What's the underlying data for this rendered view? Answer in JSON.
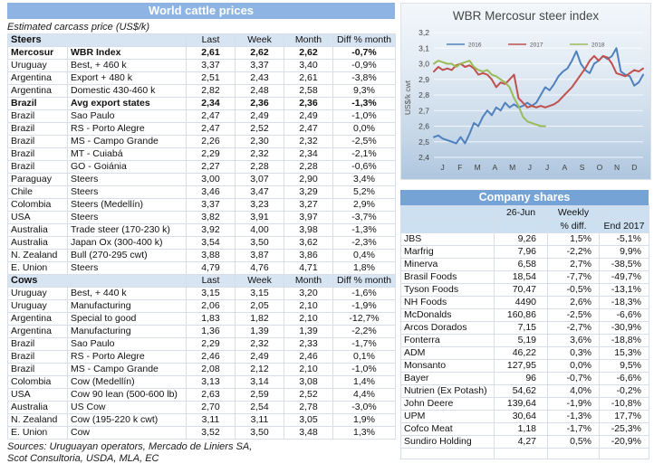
{
  "left_table": {
    "title": "World cattle prices",
    "subtitle": "Estimated carcass price (US$/k)",
    "columns": [
      "Last",
      "Week",
      "Month",
      "Diff % month"
    ],
    "sections": [
      {
        "label": "Steers",
        "rows": [
          {
            "country": "Mercosur",
            "desc": "WBR Index",
            "last": "2,61",
            "week": "2,62",
            "month": "2,62",
            "diff": "-0,7%",
            "bold": true
          },
          {
            "country": "Uruguay",
            "desc": "Best, + 460 k",
            "last": "3,37",
            "week": "3,37",
            "month": "3,40",
            "diff": "-0,9%"
          },
          {
            "country": "Argentina",
            "desc": "Export + 480 k",
            "last": "2,51",
            "week": "2,43",
            "month": "2,61",
            "diff": "-3,8%"
          },
          {
            "country": "Argentina",
            "desc": "Domestic 430-460 k",
            "last": "2,82",
            "week": "2,48",
            "month": "2,58",
            "diff": "9,3%"
          },
          {
            "country": "Brazil",
            "desc": "Avg export states",
            "last": "2,34",
            "week": "2,36",
            "month": "2,36",
            "diff": "-1,3%",
            "bold": true
          },
          {
            "country": "Brazil",
            "desc": "Sao Paulo",
            "last": "2,47",
            "week": "2,49",
            "month": "2,49",
            "diff": "-1,0%"
          },
          {
            "country": "Brazil",
            "desc": "RS - Porto Alegre",
            "last": "2,47",
            "week": "2,52",
            "month": "2,47",
            "diff": "0,0%"
          },
          {
            "country": "Brazil",
            "desc": "MS - Campo Grande",
            "last": "2,26",
            "week": "2,30",
            "month": "2,32",
            "diff": "-2,5%"
          },
          {
            "country": "Brazil",
            "desc": "MT - Cuiabá",
            "last": "2,29",
            "week": "2,32",
            "month": "2,34",
            "diff": "-2,1%"
          },
          {
            "country": "Brazil",
            "desc": "GO - Goiánia",
            "last": "2,27",
            "week": "2,28",
            "month": "2,28",
            "diff": "-0,6%"
          },
          {
            "country": "Paraguay",
            "desc": "Steers",
            "last": "3,00",
            "week": "3,07",
            "month": "2,90",
            "diff": "3,4%"
          },
          {
            "country": "Chile",
            "desc": "Steers",
            "last": "3,46",
            "week": "3,47",
            "month": "3,29",
            "diff": "5,2%"
          },
          {
            "country": "Colombia",
            "desc": "Steers (Medellín)",
            "last": "3,37",
            "week": "3,23",
            "month": "3,27",
            "diff": "2,9%"
          },
          {
            "country": "USA",
            "desc": "Steers",
            "last": "3,82",
            "week": "3,91",
            "month": "3,97",
            "diff": "-3,7%"
          },
          {
            "country": "Australia",
            "desc": "Trade steer (170-230 k)",
            "last": "3,92",
            "week": "4,00",
            "month": "3,98",
            "diff": "-1,3%"
          },
          {
            "country": "Australia",
            "desc": "Japan Ox (300-400 k)",
            "last": "3,54",
            "week": "3,50",
            "month": "3,62",
            "diff": "-2,3%"
          },
          {
            "country": "N. Zealand",
            "desc": "Bull (270-295 cwt)",
            "last": "3,88",
            "week": "3,87",
            "month": "3,86",
            "diff": "0,4%"
          },
          {
            "country": "E. Union",
            "desc": "Steers",
            "last": "4,79",
            "week": "4,76",
            "month": "4,71",
            "diff": "1,8%"
          }
        ]
      },
      {
        "label": "Cows",
        "rows": [
          {
            "country": "Uruguay",
            "desc": "Best, + 440 k",
            "last": "3,15",
            "week": "3,15",
            "month": "3,20",
            "diff": "-1,6%"
          },
          {
            "country": "Uruguay",
            "desc": "Manufacturing",
            "last": "2,06",
            "week": "2,05",
            "month": "2,10",
            "diff": "-1,9%"
          },
          {
            "country": "Argentina",
            "desc": "Special to good",
            "last": "1,83",
            "week": "1,82",
            "month": "2,10",
            "diff": "-12,7%"
          },
          {
            "country": "Argentina",
            "desc": "Manufacturing",
            "last": "1,36",
            "week": "1,39",
            "month": "1,39",
            "diff": "-2,2%"
          },
          {
            "country": "Brazil",
            "desc": "Sao Paulo",
            "last": "2,29",
            "week": "2,32",
            "month": "2,33",
            "diff": "-1,7%"
          },
          {
            "country": "Brazil",
            "desc": "RS - Porto Alegre",
            "last": "2,46",
            "week": "2,49",
            "month": "2,46",
            "diff": "0,1%"
          },
          {
            "country": "Brazil",
            "desc": "MS - Campo Grande",
            "last": "2,08",
            "week": "2,12",
            "month": "2,10",
            "diff": "-1,0%"
          },
          {
            "country": "Colombia",
            "desc": "Cow (Medellín)",
            "last": "3,13",
            "week": "3,14",
            "month": "3,08",
            "diff": "1,4%"
          },
          {
            "country": "USA",
            "desc": "Cow 90 lean (500-600 lb)",
            "last": "2,63",
            "week": "2,59",
            "month": "2,52",
            "diff": "4,4%"
          },
          {
            "country": "Australia",
            "desc": "US Cow",
            "last": "2,70",
            "week": "2,54",
            "month": "2,78",
            "diff": "-3,0%"
          },
          {
            "country": "N. Zealand",
            "desc": "Cow (195-220 k cwt)",
            "last": "3,11",
            "week": "3,11",
            "month": "3,05",
            "diff": "1,9%"
          },
          {
            "country": "E. Union",
            "desc": "Cow",
            "last": "3,52",
            "week": "3,50",
            "month": "3,48",
            "diff": "1,3%"
          }
        ]
      }
    ],
    "sources": [
      "Sources: Uruguayan operators, Mercado de Liniers SA,",
      "Scot Consultoria, USDA, MLA, EC"
    ]
  },
  "chart_data": {
    "type": "line",
    "title": "WBR Mercosur steer index",
    "ylabel": "US$/k cwt",
    "ylim": [
      2.4,
      3.2
    ],
    "ytick_labels": [
      "2,4",
      "2,5",
      "2,6",
      "2,7",
      "2,8",
      "2,9",
      "3,0",
      "3,1",
      "3,2"
    ],
    "x_tick_labels": [
      "J",
      "F",
      "M",
      "A",
      "M",
      "J",
      "J",
      "A",
      "S",
      "O",
      "N",
      "D"
    ],
    "x_unit": "week (Jan-Dec, 4 per month)",
    "grid": true,
    "legend_position": "top-inside",
    "series": [
      {
        "name": "2016",
        "color": "#4F81BD",
        "values": [
          2.53,
          2.54,
          2.52,
          2.51,
          2.5,
          2.49,
          2.53,
          2.49,
          2.55,
          2.62,
          2.6,
          2.66,
          2.7,
          2.67,
          2.72,
          2.7,
          2.75,
          2.72,
          2.74,
          2.72,
          2.73,
          2.75,
          2.73,
          2.75,
          2.8,
          2.85,
          2.83,
          2.87,
          2.92,
          2.95,
          2.97,
          3.02,
          3.08,
          3.0,
          2.96,
          2.94,
          3.0,
          3.02,
          3.05,
          3.03,
          3.05,
          3.1,
          2.95,
          2.93,
          2.92,
          2.86,
          2.88,
          2.93
        ]
      },
      {
        "name": "2017",
        "color": "#C0504D",
        "values": [
          2.95,
          2.98,
          2.96,
          2.97,
          2.96,
          2.99,
          3.0,
          2.98,
          2.99,
          2.97,
          2.93,
          2.94,
          2.93,
          2.9,
          2.85,
          2.88,
          2.87,
          2.9,
          2.93,
          2.78,
          2.75,
          2.72,
          2.73,
          2.72,
          2.73,
          2.72,
          2.73,
          2.74,
          2.76,
          2.79,
          2.82,
          2.85,
          2.89,
          2.93,
          2.97,
          3.02,
          3.05,
          3.02,
          3.05,
          3.04,
          3.0,
          2.94,
          2.93,
          2.92,
          2.94,
          2.96,
          2.95,
          2.97
        ]
      },
      {
        "name": "2018",
        "color": "#9BBB59",
        "values": [
          3.0,
          3.02,
          3.01,
          3.0,
          3.0,
          2.98,
          3.0,
          3.01,
          3.02,
          2.98,
          2.96,
          2.95,
          2.96,
          2.93,
          2.92,
          2.9,
          2.88,
          2.85,
          2.78,
          2.73,
          2.66,
          2.63,
          2.62,
          2.61,
          2.6,
          2.6
        ]
      }
    ]
  },
  "company_table": {
    "title": "Company shares",
    "headers": {
      "date": "26-Jun",
      "weekly_line1": "Weekly",
      "weekly_line2": "% diff.",
      "end": "End 2017"
    },
    "rows": [
      {
        "name": "JBS",
        "price": "9,26",
        "weekly": "1,5%",
        "end": "-5,1%"
      },
      {
        "name": "Marfrig",
        "price": "7,96",
        "weekly": "-2,2%",
        "end": "9,9%"
      },
      {
        "name": "Minerva",
        "price": "6,58",
        "weekly": "2,7%",
        "end": "-38,5%"
      },
      {
        "name": "Brasil Foods",
        "price": "18,54",
        "weekly": "-7,7%",
        "end": "-49,7%"
      },
      {
        "name": "Tyson Foods",
        "price": "70,47",
        "weekly": "-0,5%",
        "end": "-13,1%"
      },
      {
        "name": "NH Foods",
        "price": "4490",
        "weekly": "2,6%",
        "end": "-18,3%"
      },
      {
        "name": "McDonalds",
        "price": "160,86",
        "weekly": "-2,5%",
        "end": "-6,6%"
      },
      {
        "name": "Arcos Dorados",
        "price": "7,15",
        "weekly": "-2,7%",
        "end": "-30,9%"
      },
      {
        "name": "Fonterra",
        "price": "5,19",
        "weekly": "3,6%",
        "end": "-18,8%"
      },
      {
        "name": "ADM",
        "price": "46,22",
        "weekly": "0,3%",
        "end": "15,3%"
      },
      {
        "name": "Monsanto",
        "price": "127,95",
        "weekly": "0,0%",
        "end": "9,5%"
      },
      {
        "name": "Bayer",
        "price": "96",
        "weekly": "-0,7%",
        "end": "-6,6%"
      },
      {
        "name": "Nutrien (Ex Potash)",
        "price": "54,62",
        "weekly": "4,0%",
        "end": "-0,2%"
      },
      {
        "name": "John Deere",
        "price": "139,64",
        "weekly": "-1,9%",
        "end": "-10,8%"
      },
      {
        "name": "UPM",
        "price": "30,64",
        "weekly": "-1,3%",
        "end": "17,7%"
      },
      {
        "name": "Cofco Meat",
        "price": "1,18",
        "weekly": "-1,7%",
        "end": "-25,3%"
      },
      {
        "name": "Sundiro Holding",
        "price": "4,27",
        "weekly": "0,5%",
        "end": "-20,9%"
      }
    ]
  },
  "colors": {
    "title_bar": "#8DB4E2",
    "company_title_bar": "#76A3D6",
    "section_header_bg": "#D7E4F2",
    "company_subheader_bg": "#CDE0F2",
    "series_2016": "#4F81BD",
    "series_2017": "#C0504D",
    "series_2018": "#9BBB59"
  }
}
